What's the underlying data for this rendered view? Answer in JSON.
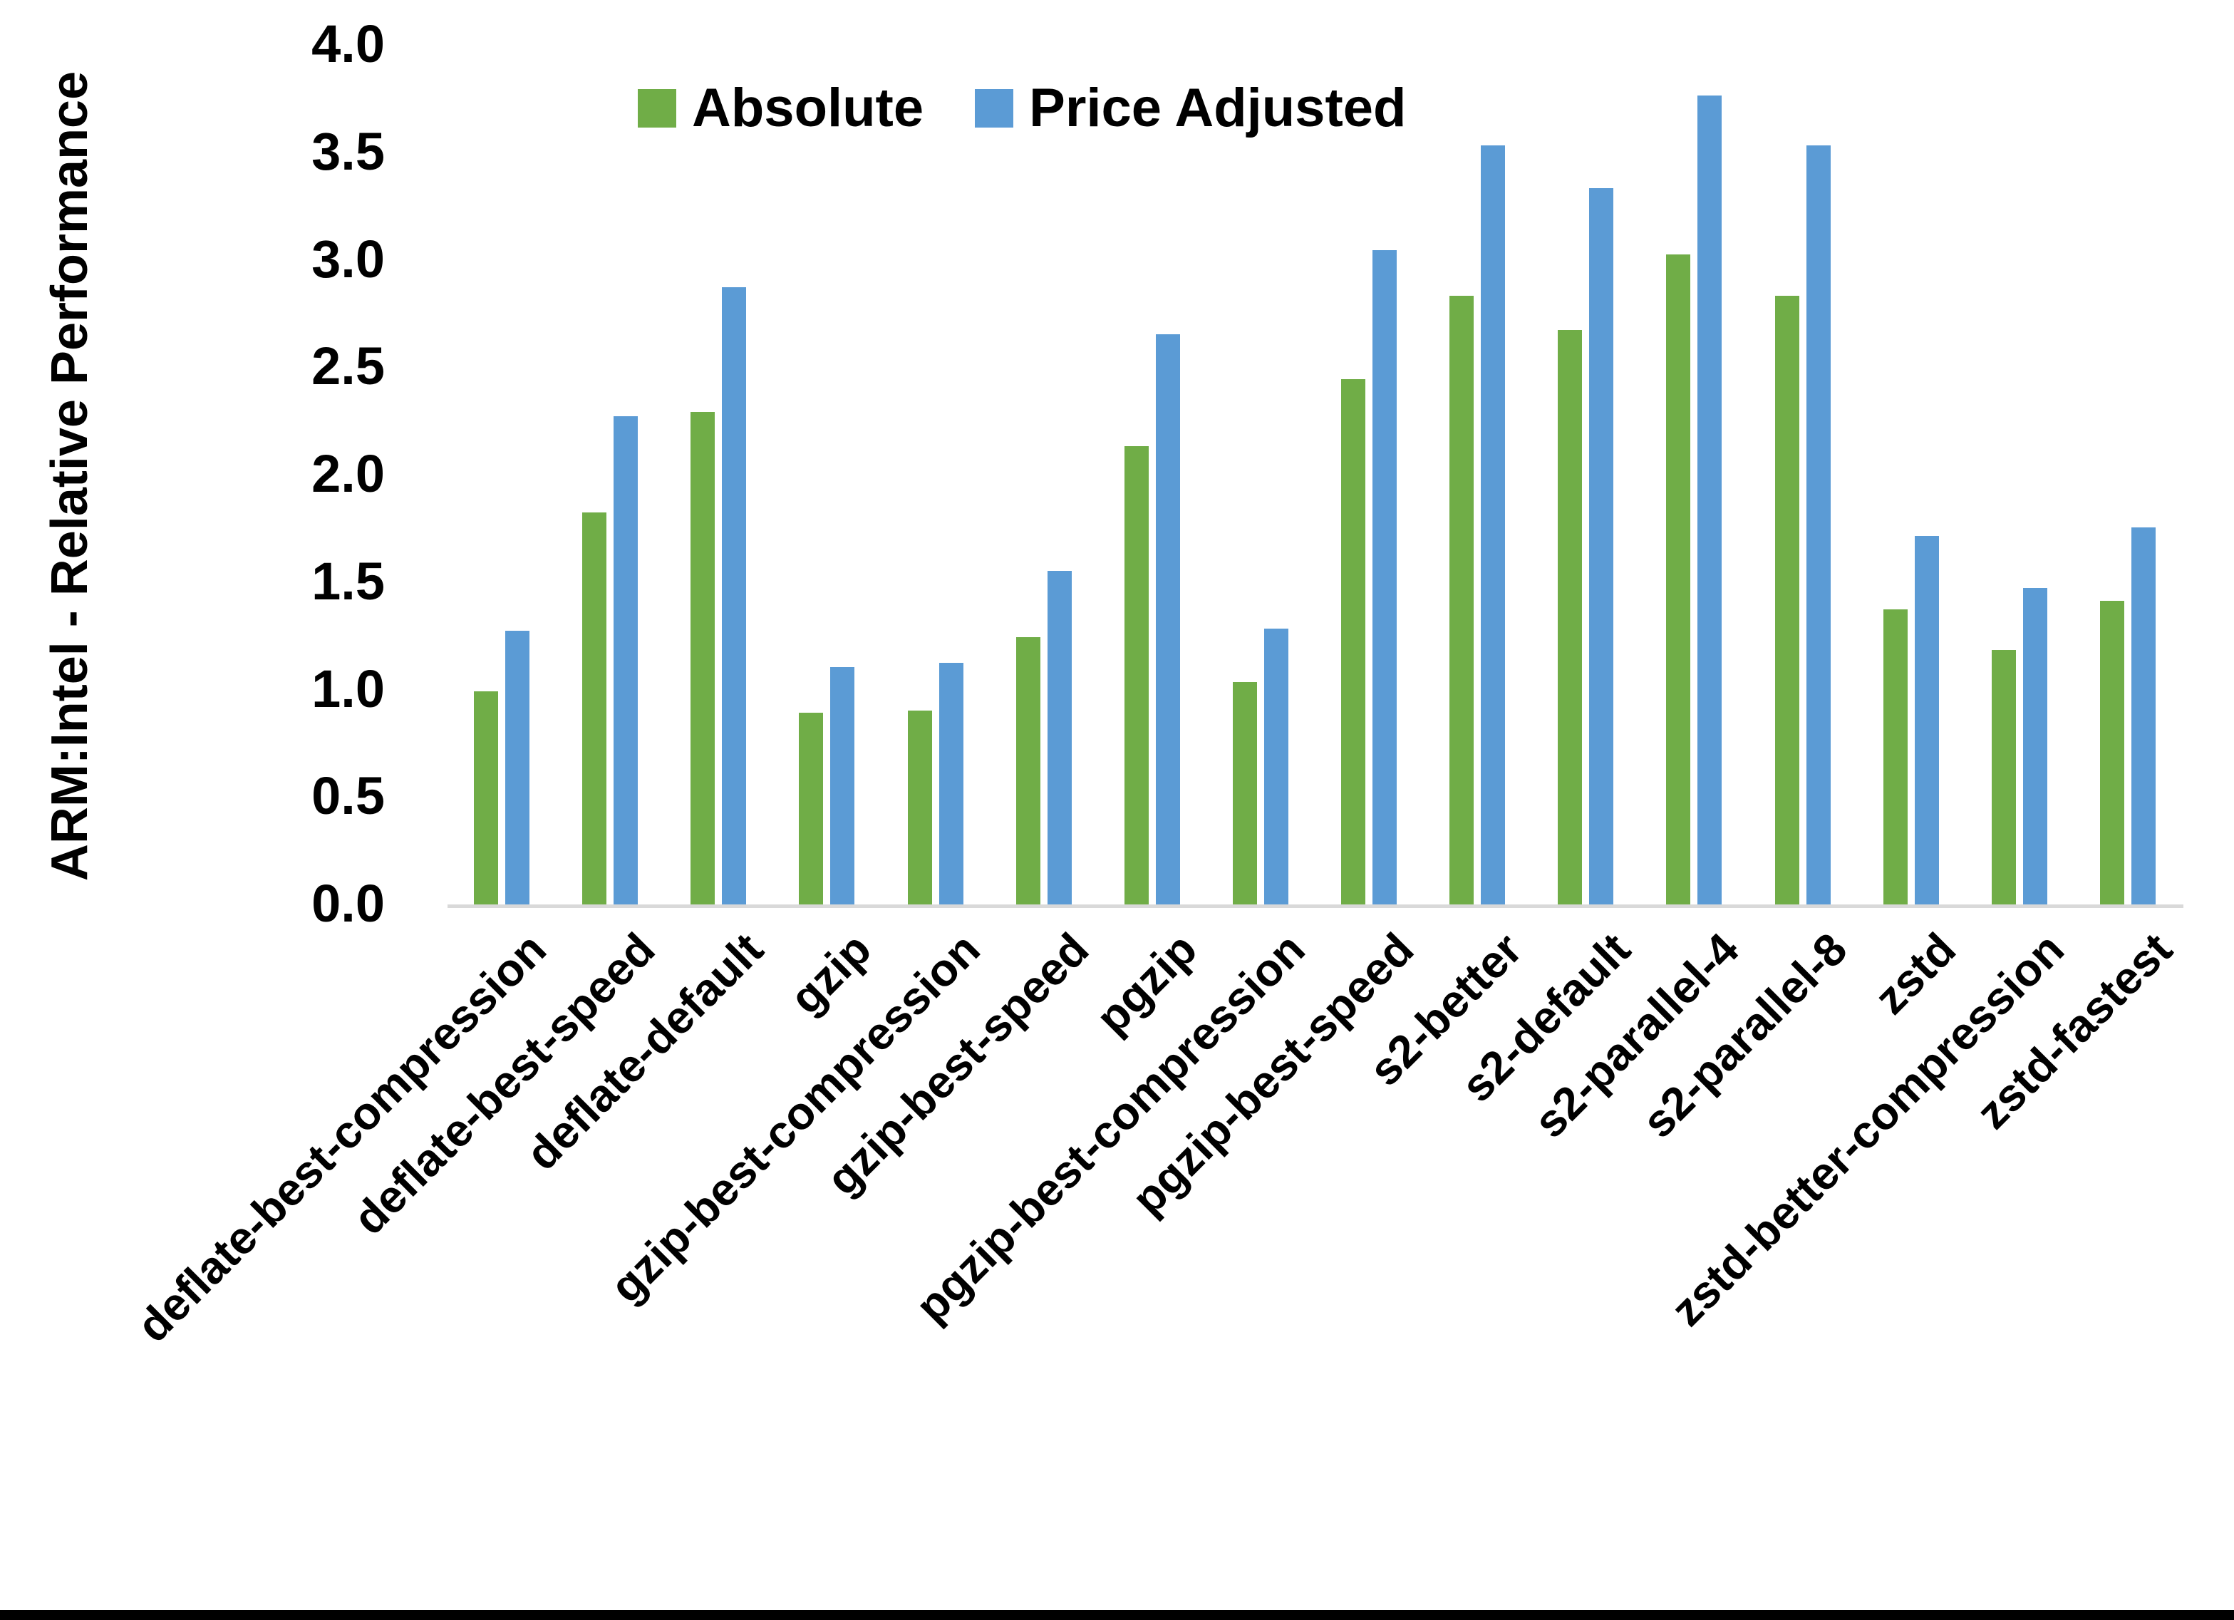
{
  "chart_data": {
    "type": "bar",
    "title": "",
    "xlabel": "",
    "ylabel": "ARM:Intel - Relative Performance",
    "ylim": [
      0.0,
      4.0
    ],
    "ytick_step": 0.5,
    "yticks": [
      "0.0",
      "0.5",
      "1.0",
      "1.5",
      "2.0",
      "2.5",
      "3.0",
      "3.5",
      "4.0"
    ],
    "grid": false,
    "legend_position": "top-center",
    "categories": [
      "deflate-best-compression",
      "deflate-best-speed",
      "deflate-default",
      "gzip",
      "gzip-best-compression",
      "gzip-best-speed",
      "pgzip",
      "pgzip-best-compression",
      "pgzip-best-speed",
      "s2-better",
      "s2-default",
      "s2-parallel-4",
      "s2-parallel-8",
      "zstd",
      "zstd-better-compression",
      "zstd-fastest"
    ],
    "series": [
      {
        "name": "Absolute",
        "color": "#70AD47",
        "values": [
          1.0,
          1.83,
          2.3,
          0.9,
          0.91,
          1.25,
          2.14,
          1.04,
          2.45,
          2.84,
          2.68,
          3.03,
          2.84,
          1.38,
          1.19,
          1.42
        ]
      },
      {
        "name": "Price Adjusted",
        "color": "#5B9BD5",
        "values": [
          1.28,
          2.28,
          2.88,
          1.11,
          1.13,
          1.56,
          2.66,
          1.29,
          3.05,
          3.54,
          3.34,
          3.77,
          3.54,
          1.72,
          1.48,
          1.76
        ]
      }
    ]
  },
  "colors": {
    "background": "#FFFFFF",
    "axis_line": "#D9D9D9",
    "text": "#000000",
    "bottom_border": "#000000"
  }
}
